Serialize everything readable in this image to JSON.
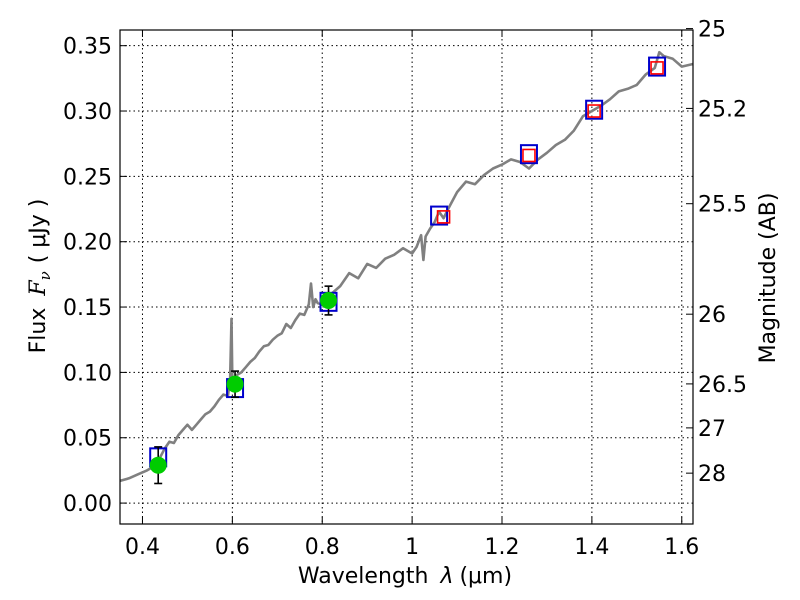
{
  "chart_data": {
    "type": "line",
    "title": "",
    "xlabel": "Wavelength",
    "xlabel_math": "λ",
    "xlabel_unit": "(μm)",
    "ylabel": "Flux",
    "ylabel_math": "F",
    "ylabel_math_sub": "ν",
    "ylabel_unit": "( μJy )",
    "y2label": "Magnitude (AB)",
    "xlim": [
      0.35,
      1.625
    ],
    "ylim": [
      -0.016,
      0.362
    ],
    "grid": true,
    "legend": "none",
    "x_ticks": [
      {
        "value": 0.4,
        "label": "0.4"
      },
      {
        "value": 0.6,
        "label": "0.6"
      },
      {
        "value": 0.8,
        "label": "0.8"
      },
      {
        "value": 1.0,
        "label": "1"
      },
      {
        "value": 1.2,
        "label": "1.2"
      },
      {
        "value": 1.4,
        "label": "1.4"
      },
      {
        "value": 1.6,
        "label": "1.6"
      }
    ],
    "y_ticks": [
      {
        "value": 0.0,
        "label": "0.00"
      },
      {
        "value": 0.05,
        "label": "0.05"
      },
      {
        "value": 0.1,
        "label": "0.10"
      },
      {
        "value": 0.15,
        "label": "0.15"
      },
      {
        "value": 0.2,
        "label": "0.20"
      },
      {
        "value": 0.25,
        "label": "0.25"
      },
      {
        "value": 0.3,
        "label": "0.30"
      },
      {
        "value": 0.35,
        "label": "0.35"
      }
    ],
    "y2_ticks": [
      {
        "value": 25.0,
        "label": "25"
      },
      {
        "value": 25.2,
        "label": "25.2"
      },
      {
        "value": 25.5,
        "label": "25.5"
      },
      {
        "value": 26.0,
        "label": "26"
      },
      {
        "value": 26.5,
        "label": "26.5"
      },
      {
        "value": 27.0,
        "label": "27"
      },
      {
        "value": 28.0,
        "label": "28"
      }
    ],
    "series": [
      {
        "kind": "spectrum",
        "color": "#808080",
        "x": [
          0.35,
          0.37,
          0.39,
          0.41,
          0.43,
          0.45,
          0.46,
          0.47,
          0.48,
          0.49,
          0.5,
          0.51,
          0.52,
          0.53,
          0.54,
          0.55,
          0.56,
          0.57,
          0.58,
          0.59,
          0.595,
          0.598,
          0.6,
          0.603,
          0.61,
          0.62,
          0.63,
          0.64,
          0.65,
          0.66,
          0.67,
          0.68,
          0.69,
          0.7,
          0.71,
          0.72,
          0.73,
          0.74,
          0.75,
          0.76,
          0.77,
          0.775,
          0.78,
          0.785,
          0.79,
          0.8,
          0.82,
          0.84,
          0.86,
          0.88,
          0.9,
          0.92,
          0.94,
          0.96,
          0.98,
          1.0,
          1.01,
          1.02,
          1.025,
          1.03,
          1.04,
          1.05,
          1.06,
          1.07,
          1.08,
          1.1,
          1.12,
          1.14,
          1.16,
          1.18,
          1.2,
          1.22,
          1.24,
          1.26,
          1.28,
          1.3,
          1.32,
          1.34,
          1.36,
          1.38,
          1.4,
          1.42,
          1.44,
          1.46,
          1.48,
          1.5,
          1.52,
          1.54,
          1.55,
          1.56,
          1.58,
          1.6,
          1.625
        ],
        "y": [
          0.017,
          0.019,
          0.022,
          0.025,
          0.029,
          0.042,
          0.047,
          0.046,
          0.052,
          0.056,
          0.06,
          0.056,
          0.06,
          0.064,
          0.068,
          0.07,
          0.074,
          0.079,
          0.083,
          0.082,
          0.094,
          0.141,
          0.09,
          0.095,
          0.098,
          0.1,
          0.104,
          0.108,
          0.111,
          0.116,
          0.12,
          0.121,
          0.125,
          0.128,
          0.13,
          0.137,
          0.134,
          0.14,
          0.145,
          0.144,
          0.152,
          0.168,
          0.15,
          0.156,
          0.153,
          0.152,
          0.16,
          0.166,
          0.176,
          0.172,
          0.183,
          0.18,
          0.187,
          0.19,
          0.195,
          0.191,
          0.196,
          0.205,
          0.186,
          0.204,
          0.21,
          0.215,
          0.223,
          0.218,
          0.225,
          0.238,
          0.246,
          0.244,
          0.251,
          0.256,
          0.259,
          0.263,
          0.261,
          0.256,
          0.263,
          0.268,
          0.274,
          0.278,
          0.285,
          0.296,
          0.3,
          0.304,
          0.309,
          0.315,
          0.317,
          0.32,
          0.328,
          0.333,
          0.345,
          0.342,
          0.34,
          0.334,
          0.336
        ]
      },
      {
        "kind": "model-photometry",
        "marker": "square",
        "color": "#0000cc",
        "x": [
          0.435,
          0.606,
          0.814,
          1.06,
          1.26,
          1.405,
          1.545
        ],
        "y": [
          0.035,
          0.088,
          0.154,
          0.22,
          0.267,
          0.301,
          0.334
        ]
      },
      {
        "kind": "observed",
        "marker": "circle",
        "color": "#00cc00",
        "x": [
          0.435,
          0.606,
          0.814
        ],
        "y": [
          0.029,
          0.091,
          0.155
        ],
        "yerr": [
          0.014,
          0.01,
          0.011
        ]
      },
      {
        "kind": "observed-ir",
        "marker": "square",
        "color": "#ff0000",
        "x": [
          1.07,
          1.26,
          1.405,
          1.545
        ],
        "y": [
          0.219,
          0.266,
          0.3,
          0.333
        ]
      }
    ]
  }
}
